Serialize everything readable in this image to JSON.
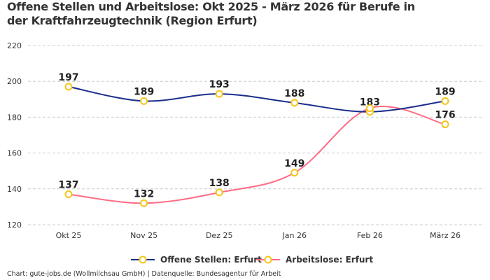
{
  "chart_data": {
    "type": "line",
    "title": "Offene Stellen und Arbeitslose: Okt 2025 - März 2026 für Berufe in der Kraftfahrzeugtechnik (Region Erfurt)",
    "categories": [
      "Okt 25",
      "Nov 25",
      "Dez 25",
      "Jan 26",
      "Feb 26",
      "März 26"
    ],
    "ylim": [
      120,
      220
    ],
    "yticks": [
      120,
      140,
      160,
      180,
      200,
      220
    ],
    "grid": true,
    "legend_position": "bottom",
    "marker_color": "#f5c518",
    "series": [
      {
        "name": "Offene Stellen: Erfurt",
        "color": "#1b2e8c",
        "values": [
          197,
          189,
          193,
          188,
          183,
          189
        ],
        "labels": [
          "197",
          "189",
          "193",
          "188",
          "183",
          "189"
        ]
      },
      {
        "name": "Arbeitslose: Erfurt",
        "color": "#ff6b85",
        "values": [
          137,
          132,
          138,
          149,
          185,
          176
        ],
        "labels": [
          "137",
          "132",
          "138",
          "149",
          "",
          "176"
        ]
      }
    ]
  },
  "credit": "Chart: gute-jobs.de (Wollmilchsau GmbH) | Datenquelle: Bundesagentur für Arbeit"
}
